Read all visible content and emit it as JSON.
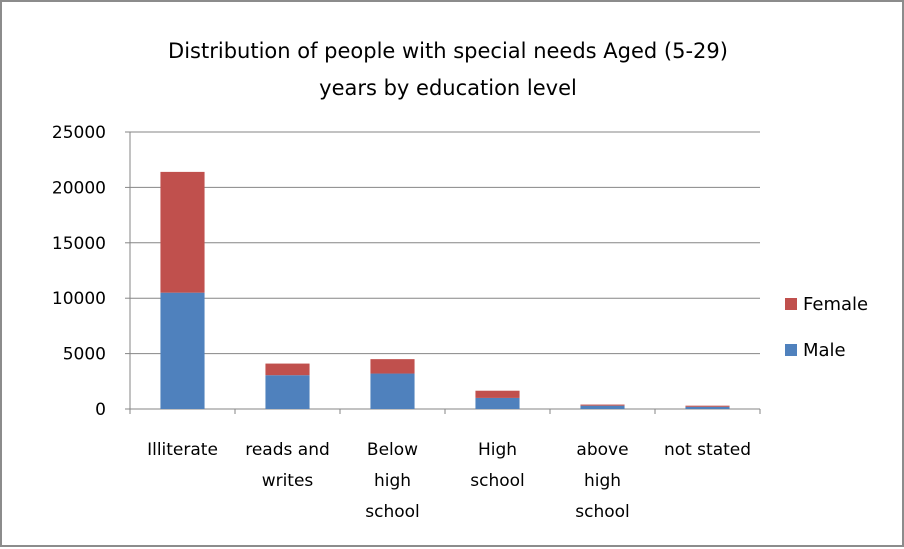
{
  "chart_data": {
    "type": "bar",
    "stacked": true,
    "title_lines": [
      "Distribution of people with special needs Aged (5-29)",
      "years by education level"
    ],
    "title": "Distribution of people with special needs Aged (5-29) years by education level",
    "xlabel": "",
    "ylabel": "",
    "ylim": [
      0,
      25000
    ],
    "yticks": [
      0,
      5000,
      10000,
      15000,
      20000,
      25000
    ],
    "grid": true,
    "legend_position": "right",
    "categories": [
      [
        "Illiterate"
      ],
      [
        "reads and",
        "writes"
      ],
      [
        "Below",
        "high",
        "school"
      ],
      [
        "High",
        "school"
      ],
      [
        "above",
        "high",
        "school"
      ],
      [
        "not stated"
      ]
    ],
    "series": [
      {
        "name": "Male",
        "color": "#4F81BD",
        "values": [
          10500,
          3050,
          3200,
          1000,
          300,
          200
        ]
      },
      {
        "name": "Female",
        "color": "#C0504D",
        "values": [
          10900,
          1050,
          1300,
          650,
          100,
          100
        ]
      }
    ]
  }
}
